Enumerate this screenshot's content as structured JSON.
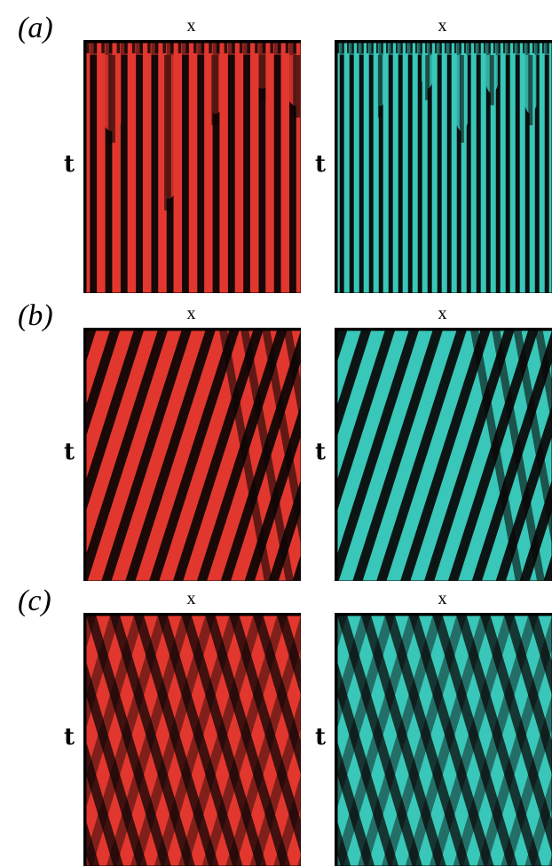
{
  "figure": {
    "rows": [
      {
        "label": "(a)",
        "x_label": "x",
        "t_label": "t",
        "pattern": "coarsening"
      },
      {
        "label": "(b)",
        "x_label": "x",
        "t_label": "t",
        "pattern": "traveling-stripes"
      },
      {
        "label": "(c)",
        "x_label": "x",
        "t_label": "t",
        "pattern": "crossing-stripes"
      }
    ],
    "panel_colors": {
      "left": "#e2372e",
      "right": "#38c7b8",
      "dark": "#0a0505"
    }
  }
}
